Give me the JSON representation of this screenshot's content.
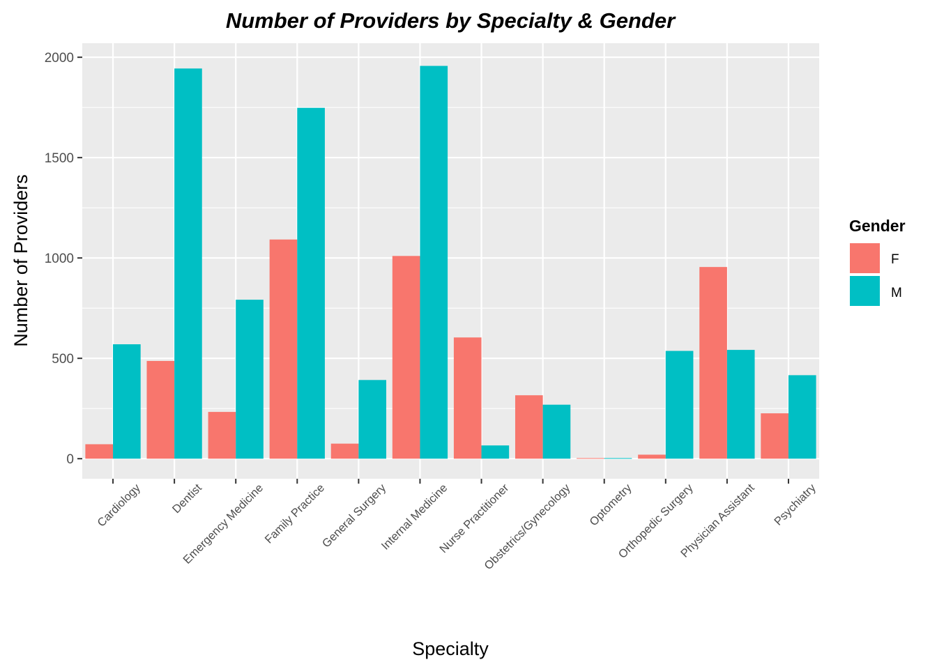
{
  "chart_data": {
    "type": "bar",
    "title": "Number of Providers by Specialty & Gender",
    "xlabel": "Specialty",
    "ylabel": "Number of Providers",
    "categories": [
      "Cardiology",
      "Dentist",
      "Emergency Medicine",
      "Family Practice",
      "General Surgery",
      "Internal Medicine",
      "Nurse Practitioner",
      "Obstetrics/Gynecology",
      "Optometry",
      "Orthopedic Surgery",
      "Physician Assistant",
      "Psychiatry"
    ],
    "series": [
      {
        "name": "F",
        "color": "#F8766D",
        "values": [
          72,
          487,
          233,
          1092,
          75,
          1010,
          604,
          316,
          3,
          20,
          955,
          226
        ]
      },
      {
        "name": "M",
        "color": "#00BFC4",
        "values": [
          570,
          1944,
          792,
          1748,
          392,
          1957,
          66,
          269,
          3,
          537,
          542,
          416
        ]
      }
    ],
    "ylim": [
      -100,
      2070
    ],
    "yticks": [
      0,
      500,
      1000,
      1500,
      2000
    ],
    "ytick_labels": [
      "0",
      "500",
      "1000",
      "1500",
      "2000"
    ],
    "grid": true,
    "legend": {
      "title": "Gender",
      "position": "right",
      "entries": [
        "F",
        "M"
      ]
    },
    "panel_color": "#EBEBEB"
  }
}
